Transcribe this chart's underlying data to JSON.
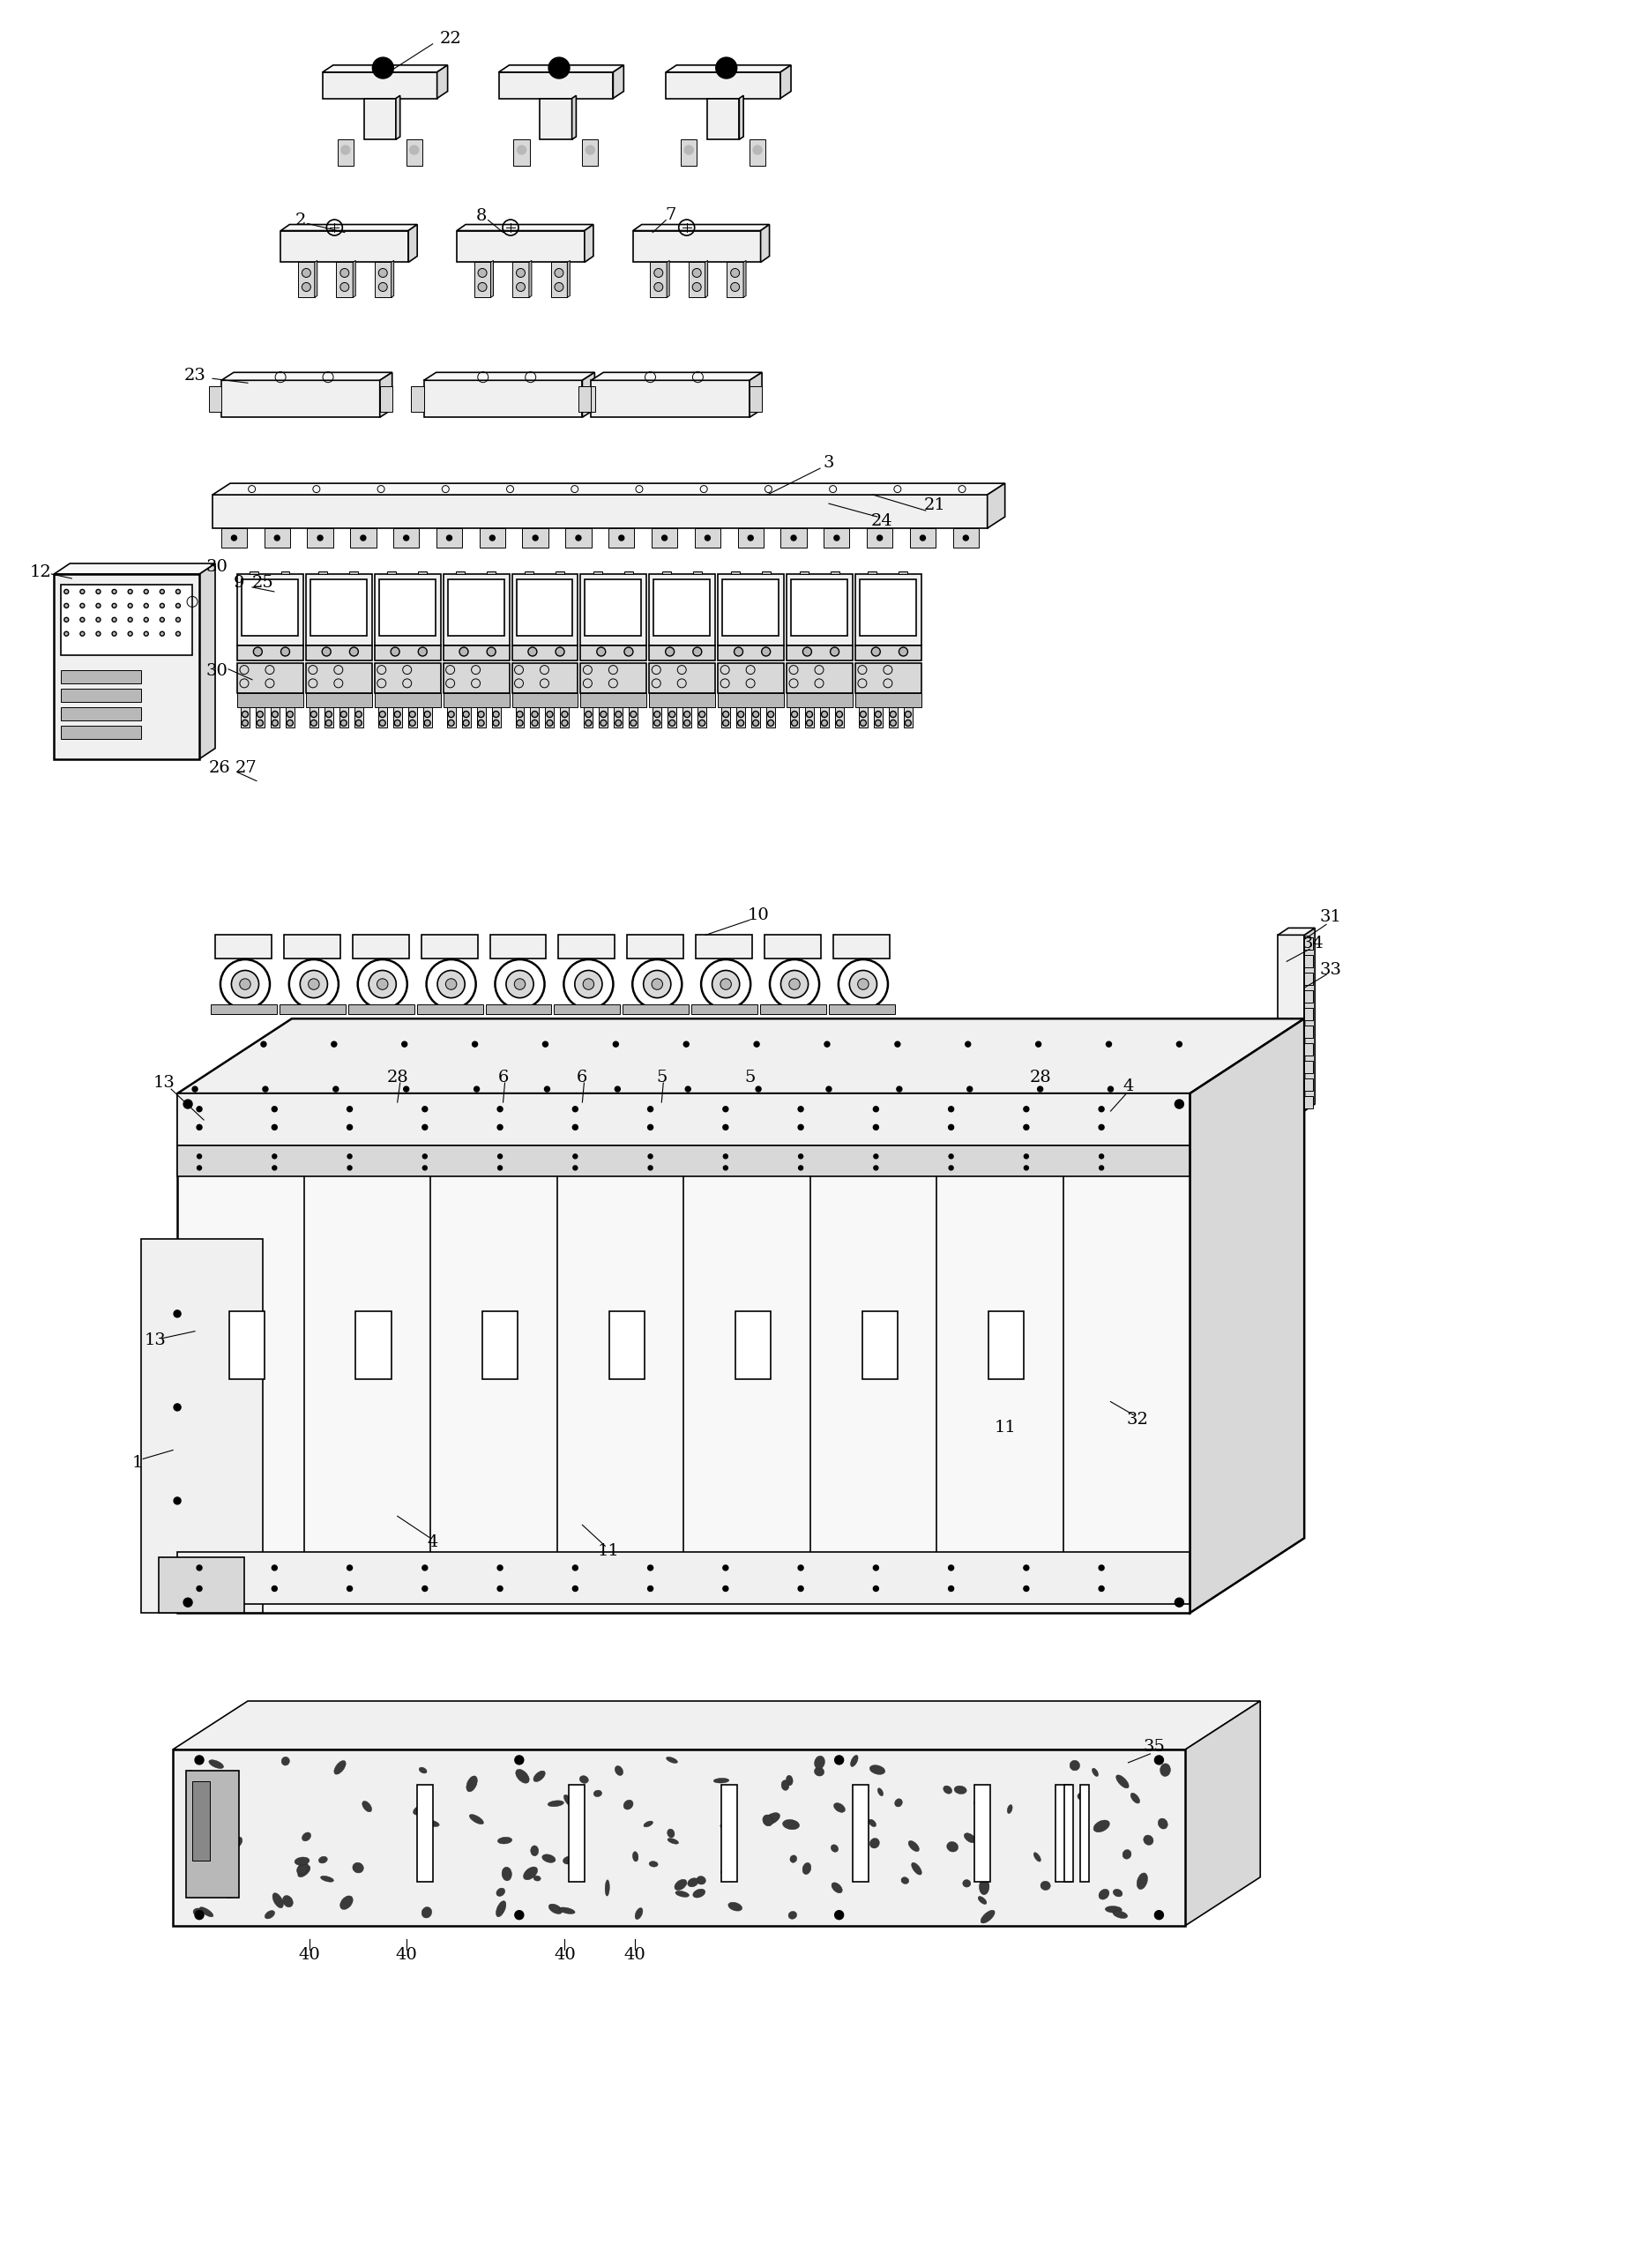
{
  "bg_color": "#ffffff",
  "figsize": [
    18.44,
    25.72
  ],
  "lw_thin": 0.7,
  "lw_med": 1.2,
  "lw_thick": 1.8,
  "colors": {
    "light": "#f0f0f0",
    "mid": "#d8d8d8",
    "dark": "#b8b8b8",
    "white": "#ffffff",
    "black": "#000000",
    "very_light": "#f8f8f8"
  }
}
